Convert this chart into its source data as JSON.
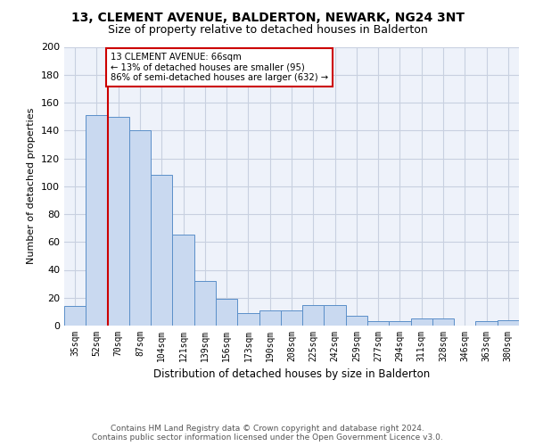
{
  "title": "13, CLEMENT AVENUE, BALDERTON, NEWARK, NG24 3NT",
  "subtitle": "Size of property relative to detached houses in Balderton",
  "xlabel": "Distribution of detached houses by size in Balderton",
  "ylabel": "Number of detached properties",
  "bar_values": [
    14,
    151,
    150,
    140,
    108,
    65,
    32,
    19,
    9,
    11,
    11,
    15,
    15,
    7,
    3,
    3,
    5,
    5,
    0,
    3,
    4
  ],
  "bar_labels": [
    "35sqm",
    "52sqm",
    "70sqm",
    "87sqm",
    "104sqm",
    "121sqm",
    "139sqm",
    "156sqm",
    "173sqm",
    "190sqm",
    "208sqm",
    "225sqm",
    "242sqm",
    "259sqm",
    "277sqm",
    "294sqm",
    "311sqm",
    "328sqm",
    "346sqm",
    "363sqm",
    "380sqm"
  ],
  "bar_color": "#c9d9f0",
  "bar_edge_color": "#5b8fc9",
  "ylim": [
    0,
    200
  ],
  "yticks": [
    0,
    20,
    40,
    60,
    80,
    100,
    120,
    140,
    160,
    180,
    200
  ],
  "annotation_line1": "13 CLEMENT AVENUE: 66sqm",
  "annotation_line2": "← 13% of detached houses are smaller (95)",
  "annotation_line3": "86% of semi-detached houses are larger (632) →",
  "annotation_box_color": "#ffffff",
  "annotation_box_edge": "#cc0000",
  "vline_color": "#cc0000",
  "vline_x_index": 2,
  "footer_line1": "Contains HM Land Registry data © Crown copyright and database right 2024.",
  "footer_line2": "Contains public sector information licensed under the Open Government Licence v3.0.",
  "bg_color": "#eef2fa",
  "grid_color": "#c8d0e0"
}
